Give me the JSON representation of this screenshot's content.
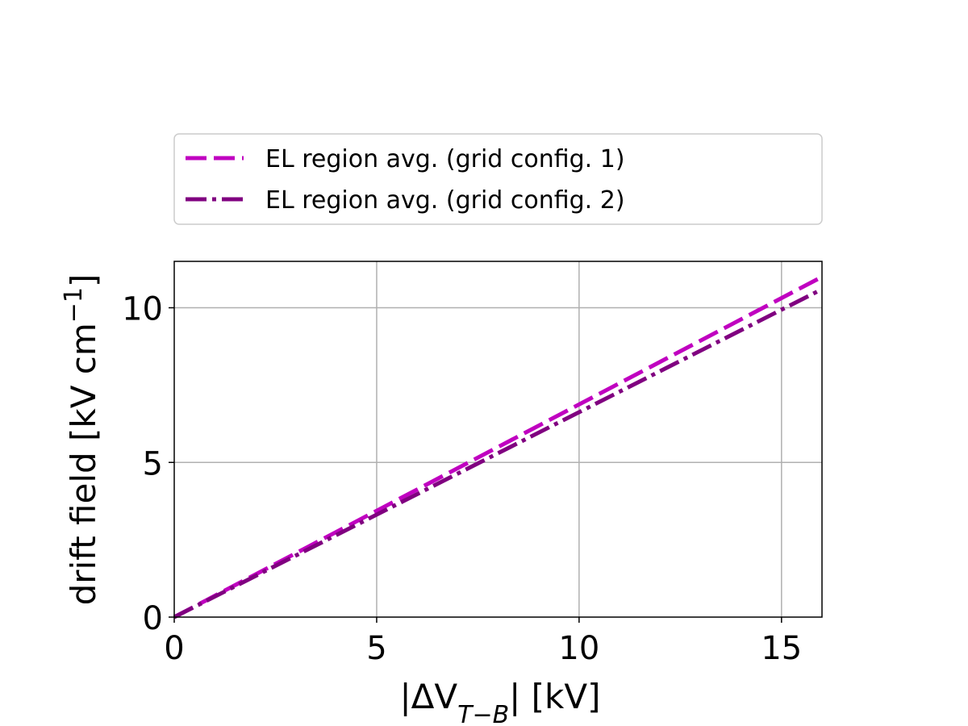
{
  "chart_data": {
    "type": "line",
    "xlabel": "|ΔV_{T−B}| [kV]",
    "ylabel": "drift field [kV cm^{−1}]",
    "xlim": [
      0,
      16
    ],
    "ylim": [
      0,
      11.5
    ],
    "xticks": [
      0,
      5,
      10,
      15
    ],
    "yticks": [
      0,
      5,
      10
    ],
    "grid": true,
    "legend_position": "above plot",
    "series": [
      {
        "name": "EL region avg. (grid config. 1)",
        "color": "#c000c0",
        "style": "dashed",
        "x": [
          0,
          16
        ],
        "y": [
          0,
          11.0
        ]
      },
      {
        "name": "EL region avg. (grid config. 2)",
        "color": "#800080",
        "style": "dashdot",
        "x": [
          0,
          16
        ],
        "y": [
          0,
          10.6
        ]
      }
    ]
  }
}
